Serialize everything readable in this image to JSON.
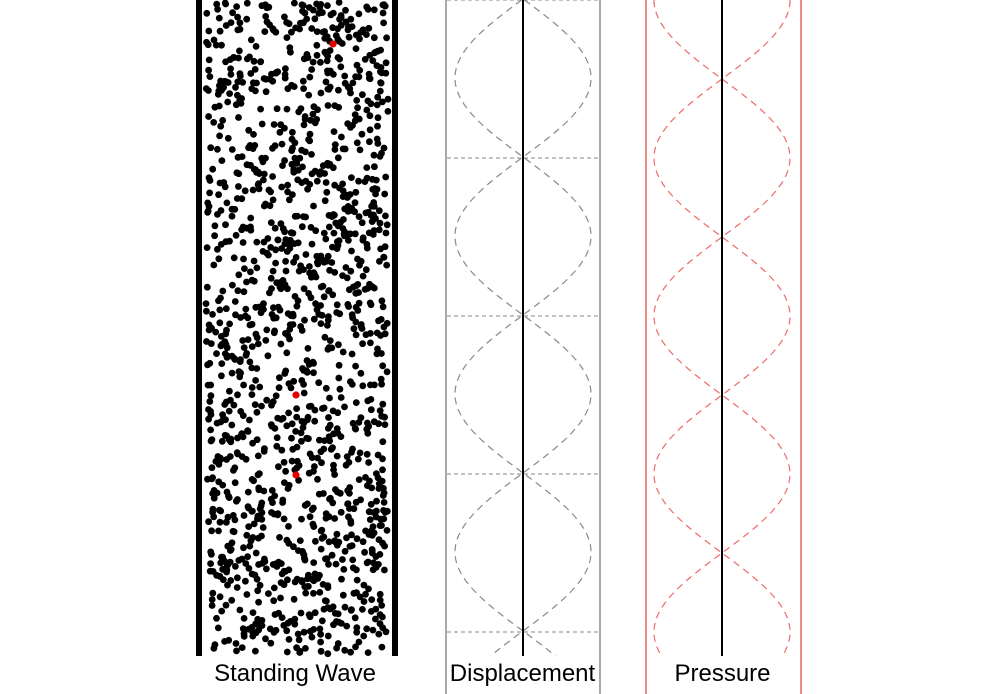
{
  "labels": {
    "standing_wave": "Standing Wave",
    "displacement": "Displacement",
    "pressure": "Pressure"
  },
  "colors": {
    "particle": "#000000",
    "tracer": "#e00000",
    "tube_wall": "#000000",
    "displacement_curve": "#8a8a8a",
    "displacement_border": "#6e6e6e",
    "pressure_curve": "#f06a6a",
    "pressure_border": "#e03c3c",
    "axis": "#000000"
  }
}
